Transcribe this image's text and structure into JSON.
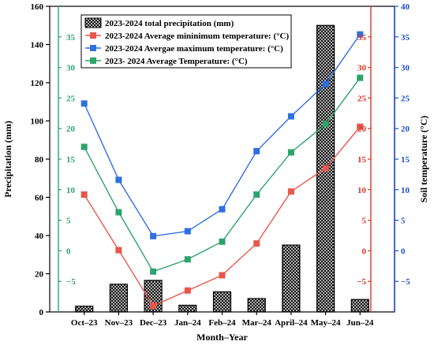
{
  "chart_data": {
    "type": "bar+line",
    "categories": [
      "Oct–23",
      "Nov–23",
      "Dec–23",
      "Jan–24",
      "Feb–24",
      "Mar–24",
      "April–24",
      "May–24",
      "Jun–24"
    ],
    "xlabel": "Month–Year",
    "ylabel_left": "Precipitation (mm)",
    "ylabel_right": "Soil temperature (°C)",
    "ylim_left": [
      0,
      160
    ],
    "yticks_left": [
      0,
      20,
      40,
      60,
      80,
      100,
      120,
      140,
      160
    ],
    "ylim_right": [
      -10,
      40
    ],
    "yticks_right": [
      -5,
      0,
      5,
      10,
      15,
      20,
      25,
      30,
      35,
      40
    ],
    "inner_ylim": [
      -10,
      40
    ],
    "inner_yticks": [
      -5,
      0,
      5,
      10,
      15,
      20,
      25,
      30,
      35
    ],
    "legend_position": "top-center",
    "series": [
      {
        "name": "2023-2024 total precipitation (mm)",
        "type": "bar",
        "axis": "left",
        "pattern": "crosshatch",
        "values": [
          3,
          14.5,
          16.5,
          3.5,
          10.5,
          7,
          35,
          150,
          6.5
        ]
      },
      {
        "name": "2023-2024 Average mininimum temperature: (°C)",
        "type": "line",
        "axis": "right",
        "color": "#e8574a",
        "values": [
          9.2,
          0.1,
          -9,
          -6.5,
          -4,
          1.2,
          9.7,
          13.5,
          20.3
        ]
      },
      {
        "name": "2023-2024 Avergae maximum temperature: (°C)",
        "type": "line",
        "axis": "right",
        "color": "#2f6fe0",
        "values": [
          24.1,
          11.6,
          2.4,
          3.2,
          6.8,
          16.3,
          22,
          27.3,
          35.4
        ]
      },
      {
        "name": "2023- 2024 Average Temperature: (°C)",
        "type": "line",
        "axis": "right",
        "color": "#2ea36c",
        "values": [
          17,
          6.3,
          -3.4,
          -1.4,
          1.5,
          9.2,
          16.1,
          20.7,
          28.3
        ]
      }
    ]
  }
}
